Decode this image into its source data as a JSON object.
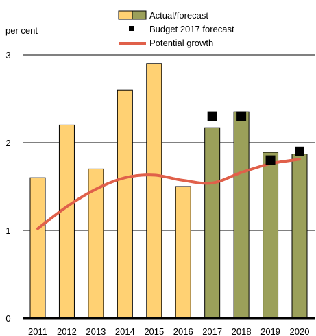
{
  "chart_data": {
    "type": "bar",
    "ylabel": "per cent",
    "ylim": [
      0,
      3
    ],
    "yticks": [
      0,
      1,
      2,
      3
    ],
    "grid": true,
    "legend_position": "top",
    "categories": [
      "2011",
      "2012",
      "2013",
      "2014",
      "2015",
      "2016",
      "2017",
      "2018",
      "2019",
      "2020"
    ],
    "series": [
      {
        "name": "Actual/forecast",
        "type": "bar",
        "values": [
          1.6,
          2.2,
          1.7,
          2.6,
          2.9,
          1.5,
          2.17,
          2.35,
          1.89,
          1.87
        ],
        "colors": [
          "#FFD173",
          "#FFD173",
          "#FFD173",
          "#FFD173",
          "#FFD173",
          "#FFD173",
          "#9BA05A",
          "#9BA05A",
          "#9BA05A",
          "#9BA05A"
        ]
      },
      {
        "name": "Budget 2017 forecast",
        "type": "scatter",
        "marker": "square",
        "color": "#000000",
        "points": [
          {
            "x": "2017",
            "y": 2.3
          },
          {
            "x": "2018",
            "y": 2.3
          },
          {
            "x": "2019",
            "y": 1.8
          },
          {
            "x": "2020",
            "y": 1.9
          }
        ]
      },
      {
        "name": "Potential growth",
        "type": "line",
        "color": "#E0604A",
        "values": [
          1.02,
          1.27,
          1.47,
          1.6,
          1.63,
          1.57,
          1.54,
          1.66,
          1.76,
          1.81
        ]
      }
    ]
  }
}
